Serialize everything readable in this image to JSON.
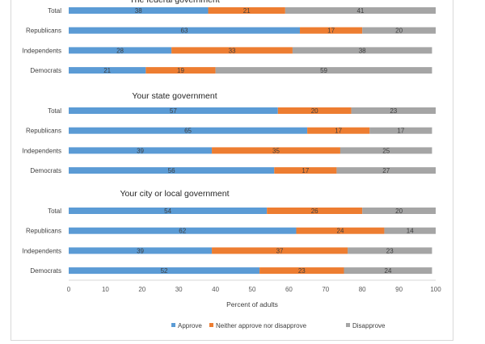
{
  "chart_data": {
    "type": "bar",
    "stacked": true,
    "orientation": "horizontal",
    "xlabel": "Percent of adults",
    "xlim": [
      0,
      100
    ],
    "xticks": [
      0,
      10,
      20,
      30,
      40,
      50,
      60,
      70,
      80,
      90,
      100
    ],
    "grid": false,
    "legend_position": "bottom",
    "series_colors": {
      "Approve": "#5b9bd5",
      "Neither approve nor disapprove": "#ed7d31",
      "Disapprove": "#a5a5a5"
    },
    "series_names": [
      "Approve",
      "Neither approve nor disapprove",
      "Disapprove"
    ],
    "panels": [
      {
        "title": "The federal government",
        "categories": [
          "Total",
          "Republicans",
          "Independents",
          "Democrats"
        ],
        "series": [
          {
            "name": "Approve",
            "values": [
              38,
              63,
              28,
              21
            ]
          },
          {
            "name": "Neither approve nor disapprove",
            "values": [
              21,
              17,
              33,
              19
            ]
          },
          {
            "name": "Disapprove",
            "values": [
              41,
              20,
              38,
              59
            ]
          }
        ]
      },
      {
        "title": "Your state government",
        "categories": [
          "Total",
          "Republicans",
          "Independents",
          "Democrats"
        ],
        "series": [
          {
            "name": "Approve",
            "values": [
              57,
              65,
              39,
              56
            ]
          },
          {
            "name": "Neither approve nor disapprove",
            "values": [
              20,
              17,
              35,
              17
            ]
          },
          {
            "name": "Disapprove",
            "values": [
              23,
              17,
              25,
              27
            ]
          }
        ]
      },
      {
        "title": "Your city or local government",
        "categories": [
          "Total",
          "Republicans",
          "Independents",
          "Democrats"
        ],
        "series": [
          {
            "name": "Approve",
            "values": [
              54,
              62,
              39,
              52
            ]
          },
          {
            "name": "Neither approve nor disapprove",
            "values": [
              26,
              24,
              37,
              23
            ]
          },
          {
            "name": "Disapprove",
            "values": [
              20,
              14,
              23,
              24
            ]
          }
        ]
      }
    ]
  }
}
